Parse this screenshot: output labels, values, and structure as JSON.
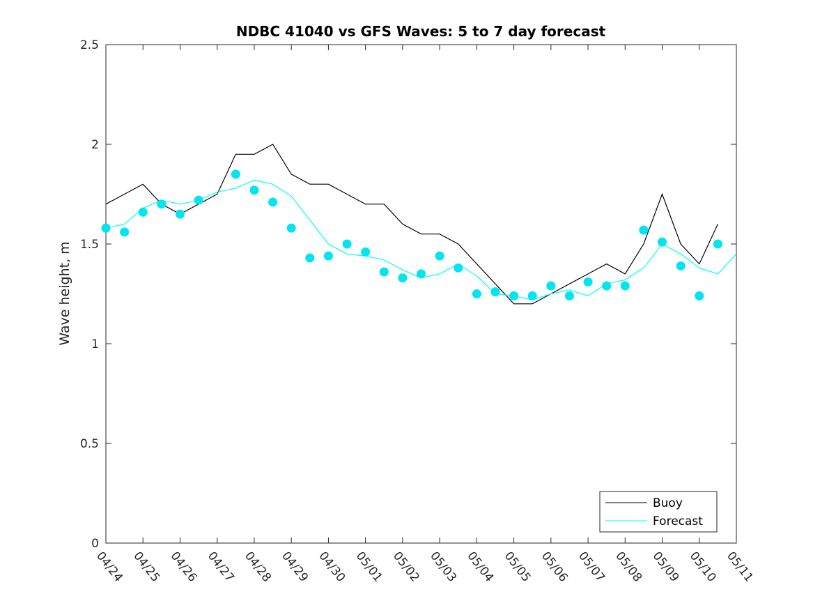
{
  "chart_data": {
    "type": "line",
    "title": "NDBC 41040 vs GFS Waves: 5 to 7 day forecast",
    "ylabel": "Wave height, m",
    "xlabel": "",
    "xlim": [
      "04/24",
      "05/11"
    ],
    "ylim": [
      0,
      2.5
    ],
    "yticks": [
      "0",
      "0.5",
      "1",
      "1.5",
      "2",
      "2.5"
    ],
    "xticks": [
      "04/24",
      "04/25",
      "04/26",
      "04/27",
      "04/28",
      "04/29",
      "04/30",
      "05/01",
      "05/02",
      "05/03",
      "05/04",
      "05/05",
      "05/06",
      "05/07",
      "05/08",
      "05/09",
      "05/10",
      "05/11"
    ],
    "grid": false,
    "legend_position": "bottom-right",
    "colors": {
      "buoy": "#000000",
      "forecast": "#00ffff",
      "forecast_markers": "#00e5ee"
    },
    "legend": [
      "Buoy",
      "Forecast"
    ],
    "series": [
      {
        "name": "Buoy",
        "style": "line",
        "color": "#000000",
        "x": [
          "04/24",
          "04/24 12:00",
          "04/25",
          "04/25 12:00",
          "04/26",
          "04/26 12:00",
          "04/27",
          "04/27 12:00",
          "04/28",
          "04/28 12:00",
          "04/29",
          "04/29 12:00",
          "04/30",
          "04/30 12:00",
          "05/01",
          "05/01 12:00",
          "05/02",
          "05/02 12:00",
          "05/03",
          "05/03 12:00",
          "05/04",
          "05/04 12:00",
          "05/05",
          "05/05 12:00",
          "05/06",
          "05/06 12:00",
          "05/07",
          "05/07 12:00",
          "05/08",
          "05/08 12:00",
          "05/09",
          "05/09 12:00",
          "05/10",
          "05/10 12:00"
        ],
        "y": [
          1.7,
          1.75,
          1.8,
          1.7,
          1.65,
          1.7,
          1.75,
          1.95,
          1.95,
          2.0,
          1.85,
          1.8,
          1.8,
          1.75,
          1.7,
          1.7,
          1.6,
          1.55,
          1.55,
          1.5,
          1.4,
          1.3,
          1.2,
          1.2,
          1.25,
          1.3,
          1.35,
          1.4,
          1.35,
          1.5,
          1.75,
          1.5,
          1.4,
          1.6
        ]
      },
      {
        "name": "Forecast",
        "style": "line",
        "color": "#00ffff",
        "x": [
          "04/24",
          "04/24 12:00",
          "04/25",
          "04/25 12:00",
          "04/26",
          "04/26 12:00",
          "04/27",
          "04/27 12:00",
          "04/28",
          "04/28 12:00",
          "04/29",
          "04/29 12:00",
          "04/30",
          "04/30 12:00",
          "05/01",
          "05/01 12:00",
          "05/02",
          "05/02 12:00",
          "05/03",
          "05/03 12:00",
          "05/04",
          "05/04 12:00",
          "05/05",
          "05/05 12:00",
          "05/06",
          "05/06 12:00",
          "05/07",
          "05/07 12:00",
          "05/08",
          "05/08 12:00",
          "05/09",
          "05/09 12:00",
          "05/10",
          "05/10 12:00",
          "05/11"
        ],
        "y": [
          1.58,
          1.6,
          1.68,
          1.72,
          1.7,
          1.72,
          1.76,
          1.78,
          1.82,
          1.8,
          1.74,
          1.62,
          1.5,
          1.45,
          1.44,
          1.42,
          1.37,
          1.33,
          1.35,
          1.4,
          1.34,
          1.25,
          1.24,
          1.22,
          1.25,
          1.27,
          1.24,
          1.3,
          1.32,
          1.38,
          1.5,
          1.45,
          1.38,
          1.35,
          1.45
        ]
      },
      {
        "name": "",
        "style": "markers",
        "color": "#00e5ee",
        "x": [
          "04/24",
          "04/24 12:00",
          "04/25",
          "04/25 12:00",
          "04/26",
          "04/26 12:00",
          "04/27 12:00",
          "04/28",
          "04/28 12:00",
          "04/29",
          "04/29 12:00",
          "04/30",
          "04/30 12:00",
          "05/01",
          "05/01 12:00",
          "05/02",
          "05/02 12:00",
          "05/03",
          "05/03 12:00",
          "05/04",
          "05/04 12:00",
          "05/05",
          "05/05 12:00",
          "05/06",
          "05/06 12:00",
          "05/07",
          "05/07 12:00",
          "05/08",
          "05/08 12:00",
          "05/09",
          "05/09 12:00",
          "05/10",
          "05/10 12:00"
        ],
        "y": [
          1.58,
          1.56,
          1.66,
          1.7,
          1.65,
          1.72,
          1.85,
          1.77,
          1.71,
          1.58,
          1.43,
          1.44,
          1.5,
          1.46,
          1.36,
          1.33,
          1.35,
          1.44,
          1.38,
          1.25,
          1.26,
          1.24,
          1.24,
          1.29,
          1.24,
          1.31,
          1.29,
          1.29,
          1.57,
          1.51,
          1.39,
          1.24,
          1.5
        ]
      }
    ]
  }
}
